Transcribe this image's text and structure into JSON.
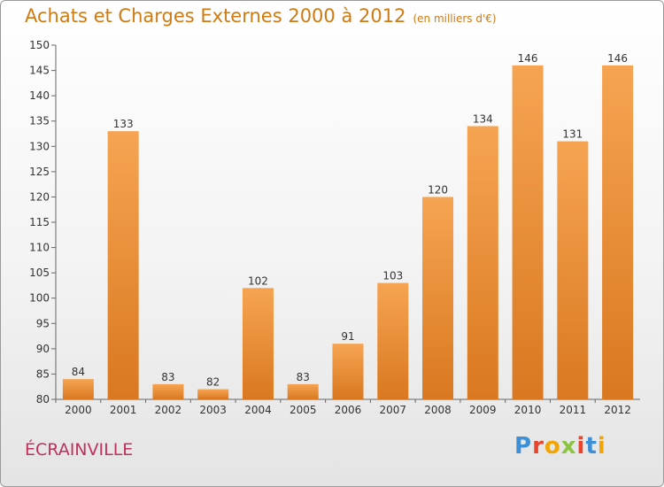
{
  "header": {
    "title": "Achats et Charges Externes 2000 à 2012",
    "unit": "(en milliers d'€)"
  },
  "footer": {
    "city": "ÉCRAINVILLE",
    "logo": "Proxiti"
  },
  "colors": {
    "bar_light": "#f6a452",
    "bar_dark": "#d97820",
    "title": "#d07a14",
    "city": "#c0305a",
    "logo_letters": [
      "#3d8fd6",
      "#e8452c",
      "#f2a500",
      "#8bc43f",
      "#e8452c",
      "#3d8fd6",
      "#f2a500"
    ]
  },
  "chart_data": {
    "type": "bar",
    "title": "Achats et Charges Externes 2000 à 2012",
    "subtitle": "(en milliers d'€)",
    "categories": [
      "2000",
      "2001",
      "2002",
      "2003",
      "2004",
      "2005",
      "2006",
      "2007",
      "2008",
      "2009",
      "2010",
      "2011",
      "2012"
    ],
    "values": [
      84,
      133,
      83,
      82,
      102,
      83,
      91,
      103,
      120,
      134,
      146,
      131,
      146
    ],
    "ylim": [
      80,
      150
    ],
    "yticks": [
      80,
      85,
      90,
      95,
      100,
      105,
      110,
      115,
      120,
      125,
      130,
      135,
      140,
      145,
      150
    ],
    "grid": false,
    "data_labels": true
  }
}
